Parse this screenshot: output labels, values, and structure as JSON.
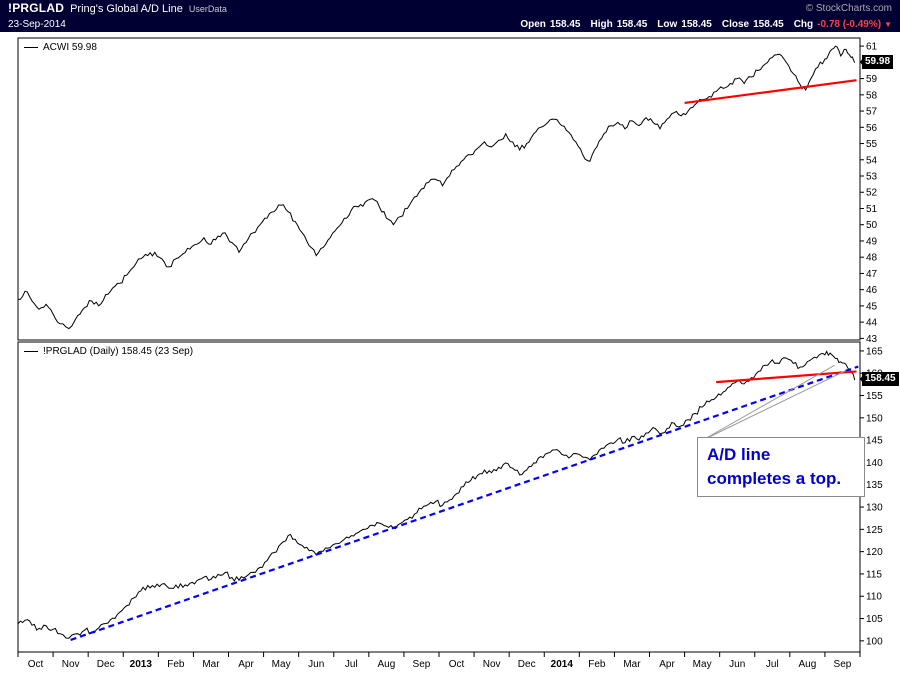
{
  "header": {
    "symbol": "!PRGLAD",
    "title": "Pring's Global A/D Line",
    "source_tag": "UserData",
    "copyright": "© StockCharts.com",
    "date": "23-Sep-2014",
    "quote": {
      "open_label": "Open",
      "open_value": "158.45",
      "high_label": "High",
      "high_value": "158.45",
      "low_label": "Low",
      "low_value": "158.45",
      "close_label": "Close",
      "close_value": "158.45",
      "chg_label": "Chg",
      "chg_value": "-0.78 (-0.49%)",
      "chg_arrow": "▼"
    }
  },
  "colors": {
    "header_bg": "#000033",
    "chg_red": "#ff4040",
    "annotation_blue": "#0000cc",
    "trendline_red": "#ff0000",
    "trendline_blue": "#0000ff",
    "series_black": "#000000",
    "price_label_bg": "#000000",
    "price_label_fg": "#ffffff"
  },
  "annotation": {
    "text_line1": "A/D line",
    "text_line2": "completes a top.",
    "points_to": [
      [
        23.28,
        161.8
      ],
      [
        23.6,
        160.6
      ]
    ]
  },
  "chart_data": [
    {
      "type": "line",
      "name": "ACWI",
      "legend": "ACWI 59.98",
      "last_price": 59.98,
      "last_price_label": "59.98",
      "ylim": [
        42.9,
        61.5
      ],
      "y_ticks": [
        61,
        60,
        59,
        58,
        57,
        56,
        55,
        54,
        53,
        52,
        51,
        50,
        49,
        48,
        47,
        46,
        45,
        44,
        43
      ],
      "grid": "off",
      "series": [
        {
          "name": "ACWI",
          "color": "#000000",
          "points": [
            [
              0.0,
              45.4
            ],
            [
              0.2,
              45.9
            ],
            [
              0.4,
              45.3
            ],
            [
              0.6,
              44.8
            ],
            [
              0.8,
              45.1
            ],
            [
              1.0,
              44.5
            ],
            [
              1.2,
              43.9
            ],
            [
              1.45,
              43.6
            ],
            [
              1.7,
              44.4
            ],
            [
              1.9,
              44.9
            ],
            [
              2.1,
              45.3
            ],
            [
              2.3,
              45.0
            ],
            [
              2.5,
              45.7
            ],
            [
              2.7,
              46.1
            ],
            [
              2.9,
              46.4
            ],
            [
              3.1,
              46.9
            ],
            [
              3.3,
              47.4
            ],
            [
              3.5,
              47.9
            ],
            [
              3.7,
              48.1
            ],
            [
              3.9,
              48.3
            ],
            [
              4.1,
              47.9
            ],
            [
              4.3,
              47.4
            ],
            [
              4.5,
              47.9
            ],
            [
              4.7,
              48.2
            ],
            [
              4.9,
              48.5
            ],
            [
              5.1,
              48.8
            ],
            [
              5.3,
              49.2
            ],
            [
              5.5,
              48.8
            ],
            [
              5.7,
              49.3
            ],
            [
              5.9,
              49.5
            ],
            [
              6.1,
              48.9
            ],
            [
              6.3,
              48.3
            ],
            [
              6.5,
              48.9
            ],
            [
              6.7,
              49.5
            ],
            [
              6.9,
              50.0
            ],
            [
              7.1,
              50.4
            ],
            [
              7.3,
              50.8
            ],
            [
              7.5,
              51.2
            ],
            [
              7.7,
              50.8
            ],
            [
              7.9,
              50.2
            ],
            [
              8.1,
              49.5
            ],
            [
              8.3,
              48.7
            ],
            [
              8.5,
              48.1
            ],
            [
              8.7,
              48.6
            ],
            [
              8.9,
              49.2
            ],
            [
              9.1,
              49.8
            ],
            [
              9.3,
              50.4
            ],
            [
              9.5,
              50.9
            ],
            [
              9.7,
              51.1
            ],
            [
              9.9,
              51.4
            ],
            [
              10.1,
              51.6
            ],
            [
              10.3,
              51.1
            ],
            [
              10.5,
              50.4
            ],
            [
              10.7,
              50.0
            ],
            [
              10.9,
              50.5
            ],
            [
              11.1,
              51.0
            ],
            [
              11.3,
              51.7
            ],
            [
              11.5,
              52.2
            ],
            [
              11.7,
              52.6
            ],
            [
              11.9,
              52.8
            ],
            [
              12.1,
              52.4
            ],
            [
              12.3,
              53.0
            ],
            [
              12.5,
              53.6
            ],
            [
              12.7,
              54.0
            ],
            [
              12.9,
              54.3
            ],
            [
              13.1,
              54.7
            ],
            [
              13.3,
              55.1
            ],
            [
              13.5,
              54.8
            ],
            [
              13.7,
              55.2
            ],
            [
              13.9,
              55.6
            ],
            [
              14.1,
              55.1
            ],
            [
              14.3,
              54.6
            ],
            [
              14.5,
              55.0
            ],
            [
              14.7,
              55.6
            ],
            [
              14.9,
              56.0
            ],
            [
              15.1,
              56.3
            ],
            [
              15.3,
              56.5
            ],
            [
              15.5,
              56.1
            ],
            [
              15.7,
              55.7
            ],
            [
              15.9,
              55.1
            ],
            [
              16.1,
              54.3
            ],
            [
              16.3,
              53.9
            ],
            [
              16.5,
              54.8
            ],
            [
              16.7,
              55.6
            ],
            [
              16.9,
              56.1
            ],
            [
              17.1,
              56.3
            ],
            [
              17.3,
              55.9
            ],
            [
              17.5,
              56.4
            ],
            [
              17.7,
              56.1
            ],
            [
              17.9,
              56.6
            ],
            [
              18.1,
              56.3
            ],
            [
              18.3,
              55.9
            ],
            [
              18.5,
              56.5
            ],
            [
              18.7,
              56.9
            ],
            [
              18.9,
              56.7
            ],
            [
              19.1,
              57.0
            ],
            [
              19.3,
              57.4
            ],
            [
              19.5,
              57.7
            ],
            [
              19.7,
              57.9
            ],
            [
              19.9,
              58.2
            ],
            [
              20.1,
              58.4
            ],
            [
              20.3,
              58.7
            ],
            [
              20.5,
              59.0
            ],
            [
              20.7,
              58.7
            ],
            [
              20.9,
              59.1
            ],
            [
              21.1,
              59.5
            ],
            [
              21.3,
              59.9
            ],
            [
              21.5,
              60.3
            ],
            [
              21.7,
              60.5
            ],
            [
              21.9,
              60.0
            ],
            [
              22.1,
              59.3
            ],
            [
              22.3,
              58.6
            ],
            [
              22.45,
              58.3
            ],
            [
              22.6,
              59.0
            ],
            [
              22.8,
              59.7
            ],
            [
              23.0,
              60.2
            ],
            [
              23.15,
              60.7
            ],
            [
              23.3,
              61.0
            ],
            [
              23.45,
              60.4
            ],
            [
              23.6,
              60.8
            ],
            [
              23.75,
              60.3
            ],
            [
              23.85,
              59.98
            ]
          ]
        }
      ],
      "trendlines": [
        {
          "color": "#ff0000",
          "style": "solid",
          "from": [
            19.0,
            57.5
          ],
          "to": [
            23.9,
            58.9
          ]
        }
      ]
    },
    {
      "type": "line",
      "name": "!PRGLAD",
      "legend": "!PRGLAD (Daily) 158.45 (23 Sep)",
      "last_price": 158.45,
      "last_price_label": "158.45",
      "ylim": [
        97.5,
        167
      ],
      "y_ticks": [
        165,
        160,
        155,
        150,
        145,
        140,
        135,
        130,
        125,
        120,
        115,
        110,
        105,
        100
      ],
      "grid": "off",
      "x_labels": [
        "Oct",
        "Nov",
        "Dec",
        "2013",
        "Feb",
        "Mar",
        "Apr",
        "May",
        "Jun",
        "Jul",
        "Aug",
        "Sep",
        "Oct",
        "Nov",
        "Dec",
        "2014",
        "Feb",
        "Mar",
        "Apr",
        "May",
        "Jun",
        "Jul",
        "Aug",
        "Sep"
      ],
      "x_bold_indices": [
        3,
        15
      ],
      "series": [
        {
          "name": "PRGLAD",
          "color": "#000000",
          "points": [
            [
              0.0,
              103.8
            ],
            [
              0.2,
              104.6
            ],
            [
              0.4,
              103.5
            ],
            [
              0.6,
              102.8
            ],
            [
              0.8,
              103.4
            ],
            [
              1.0,
              102.6
            ],
            [
              1.2,
              101.6
            ],
            [
              1.45,
              100.6
            ],
            [
              1.7,
              101.6
            ],
            [
              1.9,
              102.4
            ],
            [
              2.1,
              102.0
            ],
            [
              2.3,
              102.9
            ],
            [
              2.5,
              103.9
            ],
            [
              2.7,
              105.1
            ],
            [
              2.9,
              106.4
            ],
            [
              3.1,
              107.9
            ],
            [
              3.3,
              109.6
            ],
            [
              3.5,
              111.2
            ],
            [
              3.7,
              112.4
            ],
            [
              3.9,
              112.0
            ],
            [
              4.1,
              112.7
            ],
            [
              4.3,
              111.8
            ],
            [
              4.5,
              112.5
            ],
            [
              4.7,
              112.0
            ],
            [
              4.9,
              112.9
            ],
            [
              5.1,
              113.5
            ],
            [
              5.3,
              114.3
            ],
            [
              5.5,
              113.8
            ],
            [
              5.7,
              114.9
            ],
            [
              5.9,
              115.3
            ],
            [
              6.1,
              114.2
            ],
            [
              6.3,
              113.6
            ],
            [
              6.5,
              114.4
            ],
            [
              6.7,
              115.4
            ],
            [
              6.9,
              116.5
            ],
            [
              7.1,
              118.0
            ],
            [
              7.3,
              119.8
            ],
            [
              7.5,
              121.8
            ],
            [
              7.7,
              123.6
            ],
            [
              7.9,
              122.8
            ],
            [
              8.1,
              121.4
            ],
            [
              8.3,
              120.2
            ],
            [
              8.5,
              119.3
            ],
            [
              8.7,
              120.1
            ],
            [
              8.9,
              120.9
            ],
            [
              9.1,
              121.8
            ],
            [
              9.3,
              122.8
            ],
            [
              9.5,
              123.6
            ],
            [
              9.7,
              124.3
            ],
            [
              9.9,
              125.0
            ],
            [
              10.1,
              125.9
            ],
            [
              10.3,
              126.4
            ],
            [
              10.5,
              125.7
            ],
            [
              10.7,
              125.3
            ],
            [
              10.9,
              126.3
            ],
            [
              11.1,
              127.2
            ],
            [
              11.3,
              128.4
            ],
            [
              11.5,
              129.6
            ],
            [
              11.7,
              130.6
            ],
            [
              11.9,
              131.2
            ],
            [
              12.1,
              130.4
            ],
            [
              12.3,
              131.6
            ],
            [
              12.5,
              133.0
            ],
            [
              12.7,
              134.6
            ],
            [
              12.9,
              135.9
            ],
            [
              13.1,
              137.1
            ],
            [
              13.3,
              138.3
            ],
            [
              13.5,
              137.7
            ],
            [
              13.7,
              138.9
            ],
            [
              13.9,
              139.9
            ],
            [
              14.1,
              138.7
            ],
            [
              14.3,
              137.2
            ],
            [
              14.5,
              138.3
            ],
            [
              14.7,
              139.9
            ],
            [
              14.9,
              141.3
            ],
            [
              15.1,
              142.1
            ],
            [
              15.3,
              142.8
            ],
            [
              15.5,
              141.8
            ],
            [
              15.7,
              141.0
            ],
            [
              15.9,
              142.0
            ],
            [
              16.1,
              141.2
            ],
            [
              16.3,
              140.6
            ],
            [
              16.5,
              141.8
            ],
            [
              16.7,
              143.2
            ],
            [
              16.9,
              144.4
            ],
            [
              17.1,
              145.2
            ],
            [
              17.3,
              144.4
            ],
            [
              17.5,
              145.8
            ],
            [
              17.7,
              145.0
            ],
            [
              17.9,
              146.6
            ],
            [
              18.1,
              147.8
            ],
            [
              18.3,
              146.4
            ],
            [
              18.5,
              147.6
            ],
            [
              18.7,
              148.8
            ],
            [
              18.9,
              148.2
            ],
            [
              19.1,
              149.6
            ],
            [
              19.3,
              151.0
            ],
            [
              19.5,
              152.4
            ],
            [
              19.7,
              153.6
            ],
            [
              19.9,
              154.6
            ],
            [
              20.1,
              155.8
            ],
            [
              20.3,
              157.0
            ],
            [
              20.5,
              158.2
            ],
            [
              20.7,
              157.6
            ],
            [
              20.9,
              159.0
            ],
            [
              21.1,
              160.4
            ],
            [
              21.3,
              161.8
            ],
            [
              21.5,
              163.0
            ],
            [
              21.7,
              162.2
            ],
            [
              21.9,
              163.4
            ],
            [
              22.1,
              162.2
            ],
            [
              22.3,
              161.4
            ],
            [
              22.5,
              162.6
            ],
            [
              22.7,
              163.6
            ],
            [
              22.9,
              164.4
            ],
            [
              23.05,
              164.9
            ],
            [
              23.2,
              164.1
            ],
            [
              23.35,
              163.3
            ],
            [
              23.5,
              162.3
            ],
            [
              23.65,
              161.2
            ],
            [
              23.75,
              160.1
            ],
            [
              23.85,
              158.45
            ]
          ]
        }
      ],
      "trendlines": [
        {
          "color": "#0000ff",
          "style": "dashed",
          "from": [
            1.5,
            100.2
          ],
          "to": [
            23.95,
            161.5
          ]
        },
        {
          "color": "#ff0000",
          "style": "solid",
          "from": [
            19.9,
            158.0
          ],
          "to": [
            23.9,
            160.4
          ]
        }
      ]
    }
  ]
}
